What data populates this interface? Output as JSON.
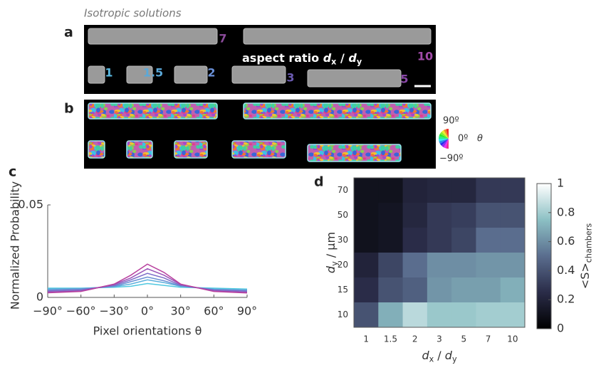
{
  "figure": {
    "heading": "Isotropic solutions",
    "panel_a": {
      "label": "a",
      "aspect_ratios": [
        "7",
        "10",
        "1",
        "1.5",
        "2",
        "3",
        "5"
      ],
      "caption": [
        {
          "text": "aspect ratio "
        },
        {
          "text": "d",
          "italic": true
        },
        {
          "text": "x",
          "sub": true
        },
        {
          "text": " / "
        },
        {
          "text": "d",
          "italic": true
        },
        {
          "text": "y",
          "sub": true
        }
      ]
    },
    "panel_b": {
      "label": "b",
      "wheel_labels": [
        "90º",
        "0º",
        "θ",
        "−90º"
      ]
    }
  },
  "chart_data": [
    {
      "type": "line",
      "panel_label": "c",
      "xlabel": "Pixel orientations θ",
      "ylabel": "Normalized  Probability",
      "x": [
        -90,
        -60,
        -30,
        -15,
        0,
        15,
        30,
        60,
        90
      ],
      "series": [
        {
          "color": "#4fc8e0",
          "values": [
            0.005,
            0.005,
            0.0055,
            0.006,
            0.0075,
            0.0065,
            0.0055,
            0.005,
            0.0045
          ]
        },
        {
          "color": "#5cb0dc",
          "values": [
            0.0045,
            0.0048,
            0.0058,
            0.0072,
            0.0095,
            0.008,
            0.006,
            0.0045,
            0.004
          ]
        },
        {
          "color": "#6a90d4",
          "values": [
            0.004,
            0.0045,
            0.006,
            0.0085,
            0.011,
            0.009,
            0.0062,
            0.0042,
            0.0038
          ]
        },
        {
          "color": "#7c6cc8",
          "values": [
            0.0035,
            0.004,
            0.0065,
            0.0095,
            0.013,
            0.0105,
            0.0065,
            0.004,
            0.0033
          ]
        },
        {
          "color": "#9a52b8",
          "values": [
            0.003,
            0.0035,
            0.007,
            0.0105,
            0.0155,
            0.012,
            0.007,
            0.0035,
            0.0028
          ]
        },
        {
          "color": "#b8409e",
          "values": [
            0.0025,
            0.0032,
            0.0072,
            0.012,
            0.018,
            0.0135,
            0.0072,
            0.0032,
            0.0024
          ]
        }
      ],
      "xlim": [
        -90,
        90
      ],
      "ylim": [
        0,
        0.05
      ],
      "xticks": [
        {
          "value": -90,
          "label": "−90°"
        },
        {
          "value": -60,
          "label": "−60°"
        },
        {
          "value": -30,
          "label": "−30°"
        },
        {
          "value": 0,
          "label": "0°"
        },
        {
          "value": 30,
          "label": "30°"
        },
        {
          "value": 60,
          "label": "60°"
        },
        {
          "value": 90,
          "label": "90°"
        }
      ],
      "yticks": [
        0,
        0.05
      ]
    },
    {
      "type": "heatmap",
      "panel_label": "d",
      "categories": [
        "1",
        "1.5",
        "2",
        "3",
        "5",
        "7",
        "10"
      ],
      "rows": [
        "70",
        "50",
        "30",
        "20",
        "15",
        "10"
      ],
      "values": [
        [
          0.1,
          0.1,
          0.2,
          0.22,
          0.22,
          0.3,
          0.3
        ],
        [
          0.1,
          0.12,
          0.22,
          0.3,
          0.32,
          0.4,
          0.4
        ],
        [
          0.1,
          0.12,
          0.25,
          0.3,
          0.35,
          0.5,
          0.5
        ],
        [
          0.2,
          0.35,
          0.5,
          0.6,
          0.6,
          0.62,
          0.62
        ],
        [
          0.25,
          0.4,
          0.45,
          0.62,
          0.65,
          0.65,
          0.7
        ],
        [
          0.4,
          0.7,
          0.85,
          0.78,
          0.78,
          0.8,
          0.8
        ]
      ],
      "zlim": [
        0,
        1
      ],
      "zticks": [
        0,
        0.2,
        0.4,
        0.6,
        0.8,
        1
      ],
      "colormap": [
        "#000000",
        "#2a2c48",
        "#5a6d8e",
        "#8cc0c4",
        "#ffffff"
      ],
      "xlabel": [
        {
          "text": "d",
          "italic": true
        },
        {
          "text": "x",
          "sub": true
        },
        {
          "text": " / "
        },
        {
          "text": "d",
          "italic": true
        },
        {
          "text": "y",
          "sub": true
        }
      ],
      "ylabel": [
        {
          "text": "d",
          "italic": true
        },
        {
          "text": "y",
          "sub": true
        },
        {
          "text": " / μm"
        }
      ],
      "colorbar_label": [
        {
          "text": "<S>"
        },
        {
          "text": "chambers",
          "sub": true
        }
      ]
    }
  ]
}
